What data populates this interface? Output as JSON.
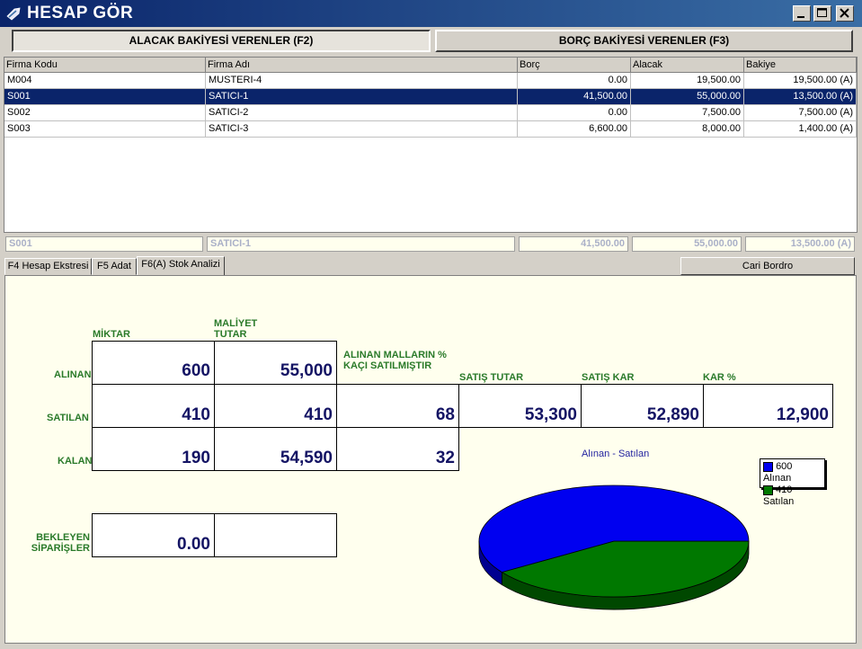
{
  "window": {
    "title": "HESAP GÖR"
  },
  "top_buttons": {
    "alacak": "ALACAK BAKİYESİ VERENLER (F2)",
    "borc": "BORÇ BAKİYESİ VERENLER (F3)"
  },
  "grid": {
    "columns": [
      "Firma Kodu",
      "Firma Adı",
      "Borç",
      "Alacak",
      "Bakiye"
    ],
    "rows": [
      {
        "code": "M004",
        "name": "MUSTERI-4",
        "borc": "0.00",
        "alacak": "19,500.00",
        "bakiye": "19,500.00 (A)",
        "selected": false
      },
      {
        "code": "S001",
        "name": "SATICI-1",
        "borc": "41,500.00",
        "alacak": "55,000.00",
        "bakiye": "13,500.00 (A)",
        "selected": true
      },
      {
        "code": "S002",
        "name": "SATICI-2",
        "borc": "0.00",
        "alacak": "7,500.00",
        "bakiye": "7,500.00 (A)",
        "selected": false
      },
      {
        "code": "S003",
        "name": "SATICI-3",
        "borc": "6,600.00",
        "alacak": "8,000.00",
        "bakiye": "1,400.00 (A)",
        "selected": false
      }
    ],
    "summary": {
      "code": "S001",
      "name": "SATICI-1",
      "borc": "41,500.00",
      "alacak": "55,000.00",
      "bakiye": "13,500.00 (A)"
    }
  },
  "tabs": [
    "F4 Hesap Ekstresi",
    "F5 Adat",
    "F6(A) Stok Analizi"
  ],
  "cari_bordro": "Cari Bordro",
  "stock": {
    "col_miktar": "MİKTAR",
    "col_maliyet": "MALİYET TUTAR",
    "col_alinan_pct": "ALINAN MALLARIN % KAÇI SATILMIŞTIR",
    "col_satis_tutar": "SATIŞ TUTAR",
    "col_satis_kar": "SATIŞ KAR",
    "col_kar_pct": "KAR %",
    "row_alinan": "ALINAN",
    "row_satilan": "SATILAN",
    "row_kalan": "KALAN",
    "row_bekleyen": "BEKLEYEN SİPARİŞLER",
    "alinan_miktar": "600",
    "alinan_maliyet": "55,000",
    "satilan_miktar": "410",
    "satilan_maliyet": "410",
    "satilan_pct": "68",
    "satis_tutar": "53,300",
    "satis_kar": "52,890",
    "kar_pct": "12,900",
    "kalan_miktar": "190",
    "kalan_maliyet": "54,590",
    "kalan_pct": "32",
    "bekleyen": "0.00"
  },
  "chart_data": {
    "type": "pie",
    "title": "Alınan - Satılan",
    "categories": [
      "600 Alınan",
      "410 Satılan"
    ],
    "values": [
      600,
      410
    ],
    "colors": [
      "#0000f0",
      "#007800"
    ],
    "legend": "top-right"
  }
}
